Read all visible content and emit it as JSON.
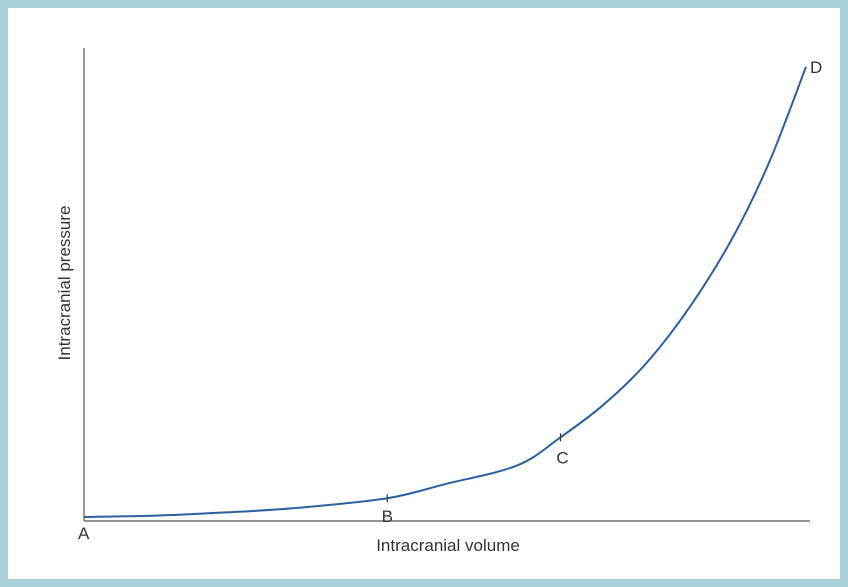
{
  "chart_data": {
    "type": "line",
    "title": "",
    "xlabel": "Intracranial volume",
    "ylabel": "Intracranial pressure",
    "xlim": [
      0,
      100
    ],
    "ylim": [
      0,
      100
    ],
    "grid": false,
    "series": [
      {
        "values": [
          {
            "x": 0,
            "y": 0
          },
          {
            "x": 10,
            "y": 0.3
          },
          {
            "x": 20,
            "y": 1
          },
          {
            "x": 30,
            "y": 2
          },
          {
            "x": 42,
            "y": 4
          },
          {
            "x": 50,
            "y": 7
          },
          {
            "x": 60,
            "y": 11
          },
          {
            "x": 66,
            "y": 17
          },
          {
            "x": 72,
            "y": 24
          },
          {
            "x": 78,
            "y": 33
          },
          {
            "x": 84,
            "y": 45
          },
          {
            "x": 90,
            "y": 60
          },
          {
            "x": 95,
            "y": 76
          },
          {
            "x": 100,
            "y": 96
          }
        ]
      }
    ],
    "annotations": [
      {
        "label": "A",
        "x": 0,
        "y": 0
      },
      {
        "label": "B",
        "x": 42,
        "y": 4
      },
      {
        "label": "C",
        "x": 66,
        "y": 17
      },
      {
        "label": "D",
        "x": 100,
        "y": 96
      }
    ],
    "colors": {
      "line": "#2b5f9e",
      "axis": "#555555",
      "border": "#a9d1d8"
    }
  }
}
